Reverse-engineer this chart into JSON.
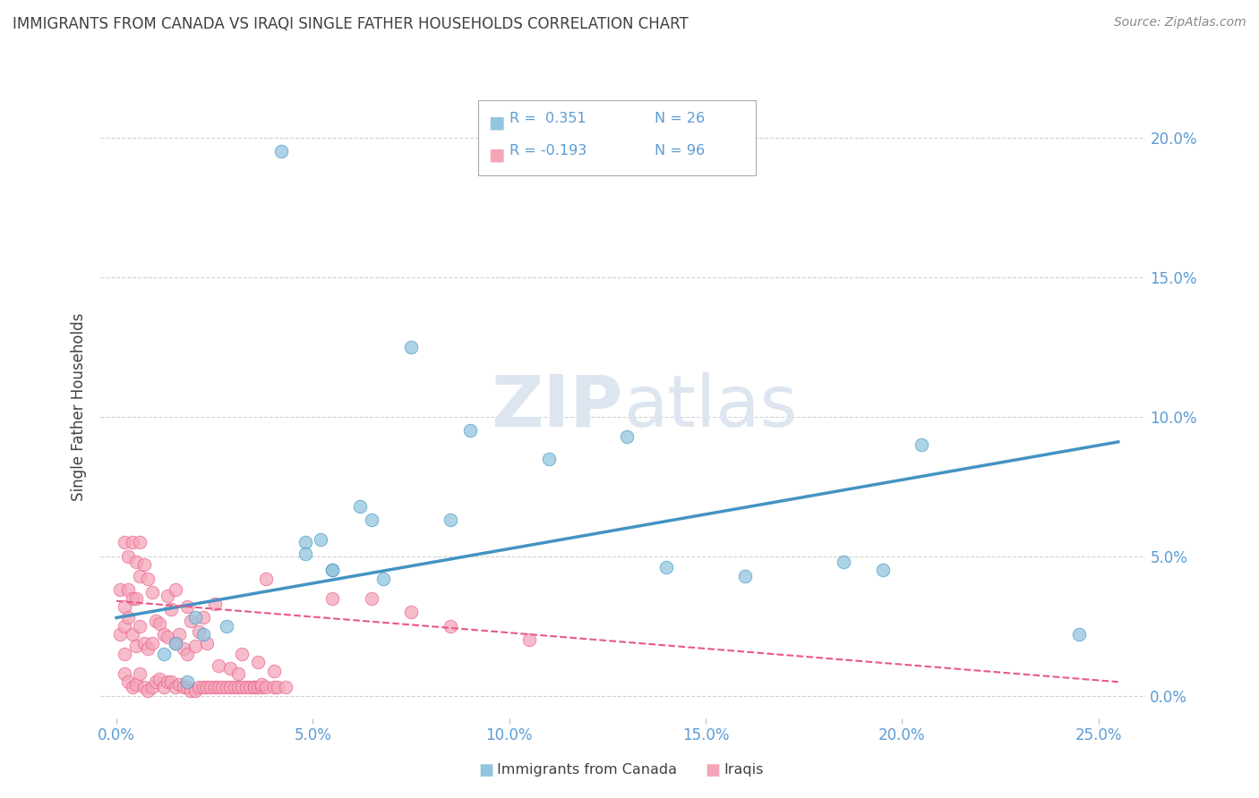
{
  "title": "IMMIGRANTS FROM CANADA VS IRAQI SINGLE FATHER HOUSEHOLDS CORRELATION CHART",
  "source": "Source: ZipAtlas.com",
  "xlabel_ticks": [
    "0.0%",
    "5.0%",
    "10.0%",
    "15.0%",
    "20.0%",
    "25.0%"
  ],
  "xlabel_vals": [
    0.0,
    0.05,
    0.1,
    0.15,
    0.2,
    0.25
  ],
  "ylabel": "Single Father Households",
  "ylabel_vals": [
    0.0,
    0.05,
    0.1,
    0.15,
    0.2
  ],
  "right_ytick_labels": [
    "0.0%",
    "5.0%",
    "10.0%",
    "15.0%",
    "20.0%"
  ],
  "xlim": [
    -0.004,
    0.262
  ],
  "ylim": [
    -0.008,
    0.215
  ],
  "legend_blue_r": "R =  0.351",
  "legend_blue_n": "N = 26",
  "legend_pink_r": "R = -0.193",
  "legend_pink_n": "N = 96",
  "blue_color": "#92c5de",
  "pink_color": "#f4a6b8",
  "blue_line_color": "#4393c3",
  "pink_line_color": "#e8588a",
  "axis_label_color": "#5b9bd5",
  "grid_color": "#cccccc",
  "title_color": "#404040",
  "watermark_color": "#dde6f0",
  "blue_scatter_x": [
    0.042,
    0.012,
    0.018,
    0.022,
    0.028,
    0.048,
    0.052,
    0.055,
    0.062,
    0.065,
    0.068,
    0.075,
    0.085,
    0.09,
    0.11,
    0.13,
    0.14,
    0.16,
    0.185,
    0.195,
    0.205,
    0.245,
    0.048,
    0.015,
    0.055,
    0.02
  ],
  "blue_scatter_y": [
    0.195,
    0.015,
    0.005,
    0.022,
    0.025,
    0.055,
    0.056,
    0.045,
    0.068,
    0.063,
    0.042,
    0.125,
    0.063,
    0.095,
    0.085,
    0.093,
    0.046,
    0.043,
    0.048,
    0.045,
    0.09,
    0.022,
    0.051,
    0.019,
    0.045,
    0.028
  ],
  "pink_scatter_x": [
    0.001,
    0.001,
    0.002,
    0.002,
    0.002,
    0.002,
    0.002,
    0.003,
    0.003,
    0.003,
    0.003,
    0.004,
    0.004,
    0.004,
    0.004,
    0.005,
    0.005,
    0.005,
    0.005,
    0.006,
    0.006,
    0.006,
    0.006,
    0.007,
    0.007,
    0.007,
    0.008,
    0.008,
    0.008,
    0.009,
    0.009,
    0.009,
    0.01,
    0.01,
    0.011,
    0.011,
    0.012,
    0.012,
    0.013,
    0.013,
    0.013,
    0.014,
    0.014,
    0.015,
    0.015,
    0.015,
    0.016,
    0.016,
    0.017,
    0.017,
    0.018,
    0.018,
    0.018,
    0.019,
    0.019,
    0.02,
    0.02,
    0.021,
    0.021,
    0.022,
    0.022,
    0.023,
    0.023,
    0.024,
    0.025,
    0.025,
    0.026,
    0.026,
    0.027,
    0.028,
    0.029,
    0.029,
    0.03,
    0.031,
    0.031,
    0.032,
    0.032,
    0.033,
    0.034,
    0.035,
    0.035,
    0.036,
    0.036,
    0.037,
    0.037,
    0.038,
    0.038,
    0.04,
    0.04,
    0.041,
    0.043,
    0.055,
    0.065,
    0.075,
    0.085,
    0.105
  ],
  "pink_scatter_y": [
    0.022,
    0.038,
    0.008,
    0.015,
    0.025,
    0.055,
    0.032,
    0.005,
    0.028,
    0.038,
    0.05,
    0.003,
    0.022,
    0.035,
    0.055,
    0.004,
    0.018,
    0.035,
    0.048,
    0.008,
    0.025,
    0.043,
    0.055,
    0.003,
    0.019,
    0.047,
    0.002,
    0.017,
    0.042,
    0.003,
    0.019,
    0.037,
    0.005,
    0.027,
    0.006,
    0.026,
    0.003,
    0.022,
    0.005,
    0.021,
    0.036,
    0.005,
    0.031,
    0.003,
    0.019,
    0.038,
    0.004,
    0.022,
    0.003,
    0.017,
    0.003,
    0.015,
    0.032,
    0.002,
    0.027,
    0.002,
    0.018,
    0.003,
    0.023,
    0.003,
    0.028,
    0.003,
    0.019,
    0.003,
    0.003,
    0.033,
    0.003,
    0.011,
    0.003,
    0.003,
    0.003,
    0.01,
    0.003,
    0.003,
    0.008,
    0.003,
    0.015,
    0.003,
    0.003,
    0.003,
    0.003,
    0.003,
    0.012,
    0.003,
    0.004,
    0.003,
    0.042,
    0.003,
    0.009,
    0.003,
    0.003,
    0.035,
    0.035,
    0.03,
    0.025,
    0.02
  ],
  "blue_line_x0": 0.0,
  "blue_line_x1": 0.255,
  "blue_line_y0": 0.028,
  "blue_line_y1": 0.091,
  "pink_line_x0": 0.0,
  "pink_line_x1": 0.255,
  "pink_line_y0": 0.034,
  "pink_line_y1": 0.005,
  "legend_label_blue": "Immigrants from Canada",
  "legend_label_pink": "Iraqis",
  "background_color": "#ffffff"
}
